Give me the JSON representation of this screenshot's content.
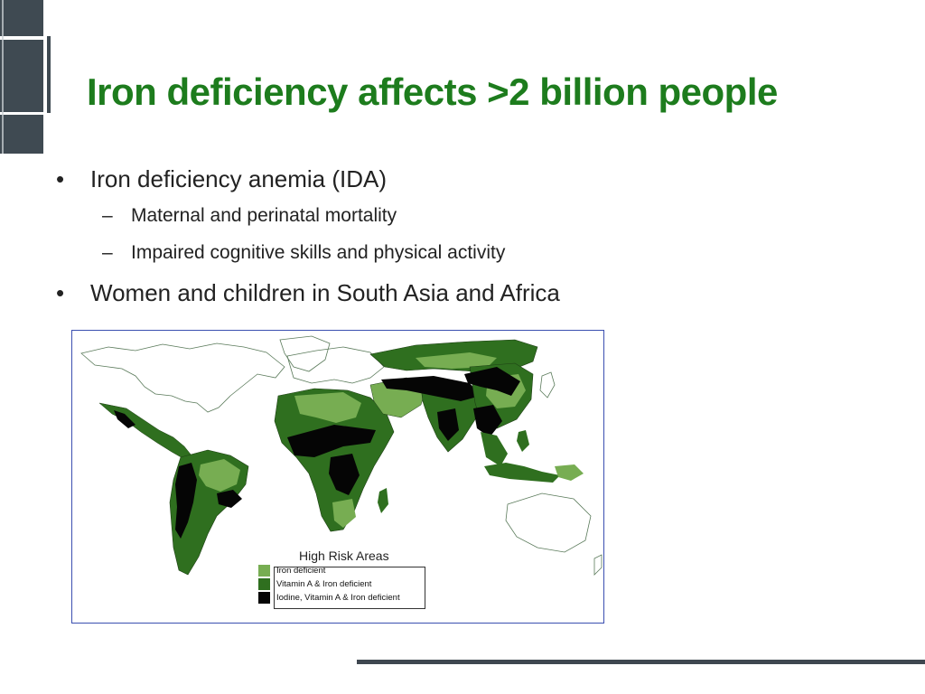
{
  "slide": {
    "title": "Iron deficiency affects >2 billion people",
    "bullets": [
      {
        "text": "Iron deficiency anemia (IDA)",
        "sub": [
          "Maternal and perinatal mortality",
          "Impaired cognitive skills and physical activity"
        ]
      },
      {
        "text": "Women and children in South Asia and Africa"
      }
    ]
  },
  "map": {
    "legend_title": "High Risk Areas",
    "legend_items": [
      {
        "label": "Iron deficient",
        "color": "#77ad52"
      },
      {
        "label": "Vitamin A & Iron deficient",
        "color": "#2f6f1f"
      },
      {
        "label": "Iodine, Vitamin A & Iron deficient",
        "color": "#050505"
      }
    ]
  },
  "colors": {
    "title": "#1d7c1d",
    "map_border": "#3b4fb0",
    "deco": "#3f4a52"
  }
}
